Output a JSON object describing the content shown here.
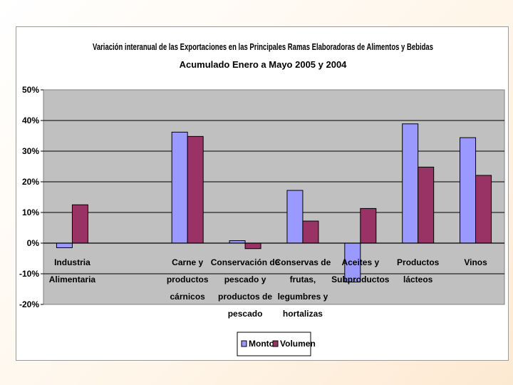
{
  "chart_data": {
    "type": "bar",
    "title": "Variación interanual de las Exportaciones en las Principales Ramas Elaboradoras de Alimentos y Bebidas",
    "subtitle": "Acumulado Enero a  Mayo 2005 y 2004",
    "xlabel": "",
    "ylabel": "",
    "ylim": [
      -20,
      50
    ],
    "yticks": [
      -20,
      -10,
      0,
      10,
      20,
      30,
      40,
      50
    ],
    "ytick_labels": [
      "-20%",
      "-10%",
      "0%",
      "10%",
      "20%",
      "30%",
      "40%",
      "50%"
    ],
    "categories": [
      [
        "Industria",
        "Alimentaria"
      ],
      [],
      [
        "Carne y",
        "productos",
        "cárnicos"
      ],
      [
        "Conservación de",
        "pescado y",
        "productos de",
        "pescado"
      ],
      [
        "Conservas de",
        "frutas,",
        "legumbres y",
        "hortalizas"
      ],
      [
        "Aceites y",
        "Subproductos"
      ],
      [
        "Productos",
        "lácteos"
      ],
      [
        "Vinos"
      ]
    ],
    "series": [
      {
        "name": "Monto",
        "color": "#9999ff",
        "values": [
          -1.5,
          null,
          36.2,
          0.8,
          17.2,
          -12.7,
          38.9,
          34.4
        ]
      },
      {
        "name": "Volumen",
        "color": "#993366",
        "values": [
          12.5,
          null,
          34.8,
          -1.8,
          7.2,
          11.3,
          24.8,
          22.1
        ]
      }
    ],
    "plot_background": "#c0c0c0",
    "grid": true,
    "legend_position": "bottom"
  }
}
